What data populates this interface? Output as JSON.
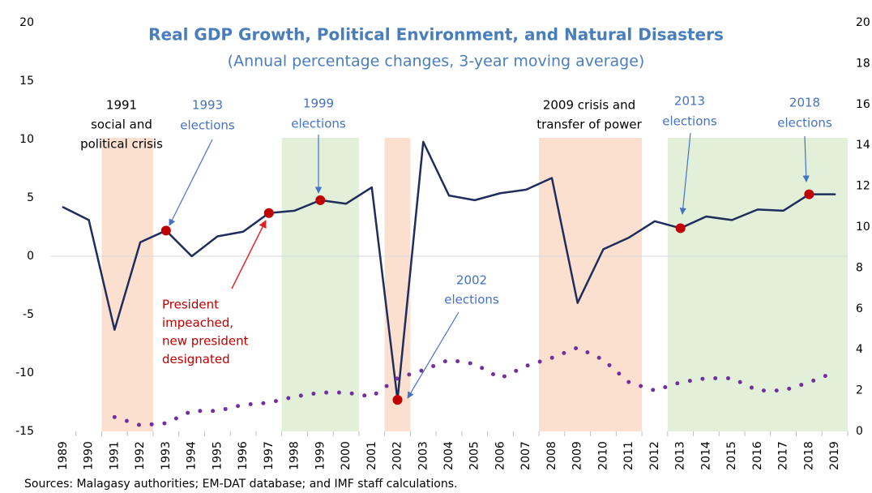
{
  "chart_data": {
    "type": "line",
    "title": "Real GDP Growth, Political  Environment, and Natural Disasters",
    "subtitle": "(Annual percentage changes, 3-year moving average)",
    "source": "Sources: Malagasy authorities; EM-DAT database; and IMF staff calculations.",
    "x": [
      1989,
      1990,
      1991,
      1992,
      1993,
      1994,
      1995,
      1996,
      1997,
      1998,
      1999,
      2000,
      2001,
      2002,
      2003,
      2004,
      2005,
      2006,
      2007,
      2008,
      2009,
      2010,
      2011,
      2012,
      2013,
      2014,
      2015,
      2016,
      2017,
      2018,
      2019
    ],
    "xlim": [
      1988.5,
      2019.5
    ],
    "ylim": [
      -15,
      20
    ],
    "yticks": [
      -15,
      -10,
      -5,
      0,
      5,
      10,
      15,
      20
    ],
    "y2lim": [
      0,
      20
    ],
    "y2ticks": [
      0,
      2,
      4,
      6,
      8,
      10,
      12,
      14,
      16,
      18,
      20
    ],
    "series": [
      {
        "color": "#1f2d5c",
        "style": "solid",
        "values": [
          4.2,
          3.1,
          -6.3,
          1.2,
          2.2,
          0,
          1.7,
          2.1,
          3.7,
          3.9,
          4.8,
          4.5,
          5.9,
          -12.3,
          9.8,
          5.2,
          4.8,
          5.4,
          5.7,
          6.7,
          -4,
          0.6,
          1.6,
          3.0,
          2.4,
          3.4,
          3.1,
          4.0,
          3.9,
          5.3,
          5.3
        ]
      },
      {
        "color": "#7030a0",
        "style": "dotted",
        "axis": "y2",
        "values": [
          null,
          null,
          0.7,
          0.3,
          0.4,
          1.0,
          1.0,
          1.3,
          1.4,
          1.7,
          1.9,
          1.9,
          1.7,
          2.6,
          3.0,
          3.5,
          3.3,
          2.6,
          3.2,
          3.6,
          4.1,
          3.5,
          2.4,
          2.0,
          2.4,
          2.6,
          2.6,
          2.0,
          2.0,
          2.4,
          2.9
        ]
      }
    ],
    "markers": [
      1993,
      1997,
      1999,
      2002,
      2013,
      2018
    ],
    "marker_color": "#c00000",
    "bands": [
      {
        "start": 1990.5,
        "end": 1992.5,
        "color": "#fbe0d0"
      },
      {
        "start": 1997.5,
        "end": 2000.5,
        "color": "#e2efd9"
      },
      {
        "start": 2001.5,
        "end": 2002.5,
        "color": "#fbe0d0"
      },
      {
        "start": 2007.5,
        "end": 2011.5,
        "color": "#fbe0d0"
      },
      {
        "start": 2012.5,
        "end": 2019.5,
        "color": "#e2efd9"
      }
    ],
    "annotations": [
      {
        "lines": [
          "1991",
          "social and",
          "political  crisis"
        ],
        "color": "#000000"
      },
      {
        "lines": [
          "1993",
          "elections"
        ],
        "color": "#4472c4"
      },
      {
        "lines": [
          "1999",
          "elections"
        ],
        "color": "#4472c4"
      },
      {
        "lines": [
          "2009 crisis and",
          "transfer of power"
        ],
        "color": "#000000"
      },
      {
        "lines": [
          "2013",
          "elections"
        ],
        "color": "#4472c4"
      },
      {
        "lines": [
          "2018",
          "elections"
        ],
        "color": "#4472c4"
      },
      {
        "lines": [
          "2002",
          "elections"
        ],
        "color": "#4472c4"
      },
      {
        "lines": [
          "President",
          "impeached,",
          "new president",
          "designated"
        ],
        "color": "#c00000"
      }
    ]
  }
}
